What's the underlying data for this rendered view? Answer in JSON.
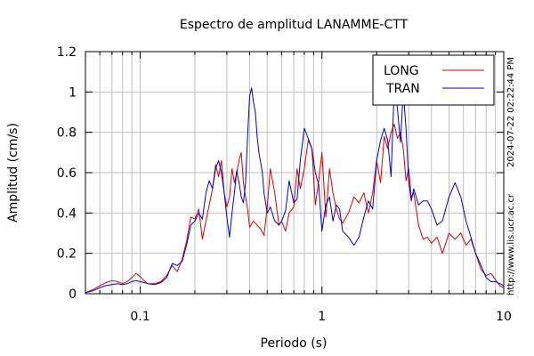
{
  "chart_data": {
    "type": "line",
    "title": "Espectro de amplitud LANAMME-CTT",
    "xlabel": "Periodo (s)",
    "ylabel": "Amplitud (cm/s)",
    "xscale": "log",
    "xlim": [
      0.05,
      10
    ],
    "ylim": [
      0,
      1.2
    ],
    "xticks": [
      {
        "value": 0.1,
        "label": "0.1"
      },
      {
        "value": 1,
        "label": "1"
      },
      {
        "value": 10,
        "label": "10"
      }
    ],
    "yticks": [
      {
        "value": 0,
        "label": "0"
      },
      {
        "value": 0.2,
        "label": "0.2"
      },
      {
        "value": 0.4,
        "label": "0.4"
      },
      {
        "value": 0.6,
        "label": "0.6"
      },
      {
        "value": 0.8,
        "label": "0.8"
      },
      {
        "value": 1,
        "label": "1"
      },
      {
        "value": 1.2,
        "label": "1.2"
      }
    ],
    "grid": true,
    "legend_position": "top-right",
    "series": [
      {
        "name": "LONG",
        "color": "#dd0000",
        "x": [
          0.05,
          0.055,
          0.06,
          0.065,
          0.07,
          0.075,
          0.08,
          0.085,
          0.09,
          0.095,
          0.1,
          0.105,
          0.11,
          0.12,
          0.13,
          0.14,
          0.15,
          0.16,
          0.17,
          0.18,
          0.19,
          0.2,
          0.21,
          0.22,
          0.23,
          0.24,
          0.25,
          0.26,
          0.27,
          0.28,
          0.29,
          0.3,
          0.31,
          0.32,
          0.33,
          0.34,
          0.35,
          0.36,
          0.37,
          0.38,
          0.39,
          0.4,
          0.42,
          0.44,
          0.46,
          0.48,
          0.5,
          0.52,
          0.55,
          0.58,
          0.6,
          0.63,
          0.66,
          0.7,
          0.73,
          0.76,
          0.8,
          0.84,
          0.88,
          0.92,
          0.96,
          1.0,
          1.05,
          1.1,
          1.15,
          1.2,
          1.25,
          1.3,
          1.4,
          1.5,
          1.6,
          1.7,
          1.8,
          1.9,
          2.0,
          2.1,
          2.2,
          2.3,
          2.4,
          2.5,
          2.6,
          2.7,
          2.8,
          2.9,
          3.0,
          3.1,
          3.2,
          3.4,
          3.6,
          3.8,
          4.0,
          4.3,
          4.6,
          5.0,
          5.4,
          5.8,
          6.2,
          6.6,
          7.0,
          7.5,
          8.0,
          8.5,
          9.0,
          9.5,
          10.0
        ],
        "values": [
          0.005,
          0.02,
          0.04,
          0.055,
          0.065,
          0.06,
          0.05,
          0.06,
          0.08,
          0.1,
          0.085,
          0.065,
          0.05,
          0.05,
          0.06,
          0.09,
          0.14,
          0.11,
          0.17,
          0.26,
          0.38,
          0.37,
          0.42,
          0.27,
          0.36,
          0.44,
          0.52,
          0.64,
          0.58,
          0.66,
          0.5,
          0.43,
          0.48,
          0.62,
          0.55,
          0.6,
          0.66,
          0.7,
          0.55,
          0.48,
          0.42,
          0.33,
          0.36,
          0.34,
          0.32,
          0.29,
          0.43,
          0.62,
          0.5,
          0.34,
          0.36,
          0.31,
          0.4,
          0.43,
          0.62,
          0.52,
          0.62,
          0.76,
          0.72,
          0.44,
          0.56,
          0.7,
          0.38,
          0.62,
          0.5,
          0.42,
          0.37,
          0.35,
          0.4,
          0.48,
          0.45,
          0.5,
          0.4,
          0.5,
          0.66,
          0.55,
          0.78,
          0.72,
          0.8,
          0.84,
          0.77,
          0.8,
          0.72,
          0.56,
          0.62,
          0.48,
          0.5,
          0.34,
          0.27,
          0.28,
          0.25,
          0.28,
          0.2,
          0.3,
          0.27,
          0.3,
          0.24,
          0.27,
          0.2,
          0.12,
          0.09,
          0.1,
          0.07,
          0.04,
          0.03
        ]
      },
      {
        "name": "TRAN",
        "color": "#0000cc",
        "x": [
          0.05,
          0.055,
          0.06,
          0.065,
          0.07,
          0.075,
          0.08,
          0.085,
          0.09,
          0.095,
          0.1,
          0.105,
          0.11,
          0.12,
          0.13,
          0.14,
          0.15,
          0.16,
          0.17,
          0.18,
          0.19,
          0.2,
          0.21,
          0.22,
          0.23,
          0.24,
          0.25,
          0.26,
          0.27,
          0.28,
          0.29,
          0.3,
          0.31,
          0.32,
          0.33,
          0.34,
          0.35,
          0.36,
          0.37,
          0.38,
          0.39,
          0.4,
          0.41,
          0.42,
          0.43,
          0.44,
          0.45,
          0.46,
          0.47,
          0.48,
          0.5,
          0.52,
          0.55,
          0.58,
          0.6,
          0.63,
          0.66,
          0.7,
          0.73,
          0.76,
          0.8,
          0.84,
          0.88,
          0.92,
          0.96,
          1.0,
          1.05,
          1.1,
          1.15,
          1.2,
          1.25,
          1.3,
          1.4,
          1.5,
          1.6,
          1.7,
          1.8,
          1.9,
          2.0,
          2.1,
          2.2,
          2.3,
          2.4,
          2.5,
          2.6,
          2.7,
          2.8,
          2.9,
          3.0,
          3.1,
          3.2,
          3.4,
          3.6,
          3.8,
          4.0,
          4.3,
          4.6,
          5.0,
          5.4,
          5.8,
          6.2,
          6.6,
          7.0,
          7.5,
          8.0,
          8.5,
          9.0,
          9.5,
          10.0
        ],
        "values": [
          0.005,
          0.015,
          0.03,
          0.04,
          0.045,
          0.05,
          0.045,
          0.05,
          0.06,
          0.065,
          0.06,
          0.055,
          0.05,
          0.045,
          0.055,
          0.08,
          0.15,
          0.14,
          0.16,
          0.24,
          0.34,
          0.36,
          0.4,
          0.37,
          0.5,
          0.56,
          0.52,
          0.62,
          0.66,
          0.6,
          0.5,
          0.38,
          0.28,
          0.4,
          0.5,
          0.61,
          0.55,
          0.48,
          0.45,
          0.55,
          0.78,
          0.98,
          1.02,
          0.95,
          0.9,
          0.78,
          0.7,
          0.65,
          0.6,
          0.5,
          0.4,
          0.43,
          0.36,
          0.34,
          0.36,
          0.41,
          0.56,
          0.45,
          0.47,
          0.66,
          0.82,
          0.77,
          0.72,
          0.6,
          0.54,
          0.31,
          0.44,
          0.48,
          0.36,
          0.44,
          0.42,
          0.31,
          0.28,
          0.24,
          0.28,
          0.38,
          0.46,
          0.42,
          0.66,
          0.76,
          0.82,
          0.76,
          0.58,
          1.02,
          0.92,
          0.75,
          1.0,
          0.82,
          0.56,
          0.46,
          0.52,
          0.44,
          0.46,
          0.46,
          0.42,
          0.34,
          0.36,
          0.48,
          0.55,
          0.48,
          0.36,
          0.28,
          0.2,
          0.14,
          0.08,
          0.06,
          0.06,
          0.05,
          0.04
        ]
      }
    ]
  },
  "side_text": {
    "timestamp": "2024-07-22 02:22:44 PM",
    "url": "http://www.lis.ucr.ac.cr"
  }
}
